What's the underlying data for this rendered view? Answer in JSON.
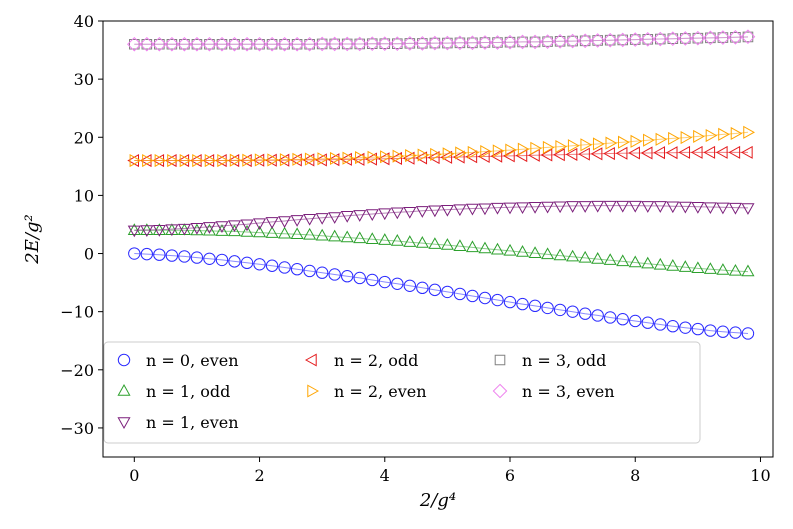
{
  "chart_data": {
    "type": "scatter",
    "xlabel": "2/g⁴",
    "ylabel": "2E/g²",
    "xlim": [
      -0.5,
      10.2
    ],
    "ylim": [
      -35,
      40
    ],
    "xticks": [
      0,
      2,
      4,
      6,
      8,
      10
    ],
    "yticks": [
      -30,
      -20,
      -10,
      0,
      10,
      20,
      30,
      40
    ],
    "grid": false,
    "legend_position": "lower-center",
    "series": [
      {
        "name": "n = 0, even",
        "marker": "circle",
        "color": "#2b2bff",
        "x": [
          0,
          0.2,
          0.4,
          0.6,
          0.8,
          1.0,
          1.2,
          1.4,
          1.6,
          1.8,
          2.0,
          2.2,
          2.4,
          2.6,
          2.8,
          3.0,
          3.2,
          3.4,
          3.6,
          3.8,
          4.0,
          4.2,
          4.4,
          4.6,
          4.8,
          5.0,
          5.2,
          5.4,
          5.6,
          5.8,
          6.0,
          6.2,
          6.4,
          6.6,
          6.8,
          7.0,
          7.2,
          7.4,
          7.6,
          7.8,
          8.0,
          8.2,
          8.4,
          8.6,
          8.8,
          9.0,
          9.2,
          9.4,
          9.6,
          9.8
        ],
        "y": [
          0.0,
          -0.1,
          -0.2,
          -0.35,
          -0.5,
          -0.7,
          -0.9,
          -1.1,
          -1.35,
          -1.6,
          -1.85,
          -2.1,
          -2.4,
          -2.7,
          -3.0,
          -3.3,
          -3.6,
          -3.9,
          -4.2,
          -4.55,
          -4.9,
          -5.2,
          -5.55,
          -5.9,
          -6.25,
          -6.6,
          -6.95,
          -7.3,
          -7.65,
          -8.0,
          -8.35,
          -8.7,
          -9.0,
          -9.35,
          -9.7,
          -10.0,
          -10.35,
          -10.65,
          -11.0,
          -11.3,
          -11.6,
          -11.9,
          -12.2,
          -12.5,
          -12.75,
          -13.0,
          -13.25,
          -13.45,
          -13.6,
          -13.75
        ]
      },
      {
        "name": "n = 1, odd",
        "marker": "triangle-up",
        "color": "#2ca02c",
        "x": [
          0,
          0.2,
          0.4,
          0.6,
          0.8,
          1.0,
          1.2,
          1.4,
          1.6,
          1.8,
          2.0,
          2.2,
          2.4,
          2.6,
          2.8,
          3.0,
          3.2,
          3.4,
          3.6,
          3.8,
          4.0,
          4.2,
          4.4,
          4.6,
          4.8,
          5.0,
          5.2,
          5.4,
          5.6,
          5.8,
          6.0,
          6.2,
          6.4,
          6.6,
          6.8,
          7.0,
          7.2,
          7.4,
          7.6,
          7.8,
          8.0,
          8.2,
          8.4,
          8.6,
          8.8,
          9.0,
          9.2,
          9.4,
          9.6,
          9.8
        ],
        "y": [
          4.0,
          4.0,
          4.0,
          4.0,
          4.0,
          3.95,
          3.9,
          3.85,
          3.8,
          3.7,
          3.6,
          3.5,
          3.4,
          3.3,
          3.2,
          3.05,
          2.9,
          2.75,
          2.6,
          2.45,
          2.3,
          2.15,
          1.95,
          1.8,
          1.6,
          1.45,
          1.25,
          1.05,
          0.85,
          0.65,
          0.45,
          0.25,
          0.05,
          -0.15,
          -0.35,
          -0.55,
          -0.75,
          -0.95,
          -1.15,
          -1.35,
          -1.55,
          -1.75,
          -1.95,
          -2.15,
          -2.35,
          -2.55,
          -2.7,
          -2.85,
          -3.0,
          -3.1
        ]
      },
      {
        "name": "n = 1, even",
        "marker": "triangle-down",
        "color": "#7b1f7b",
        "x": [
          0,
          0.2,
          0.4,
          0.6,
          0.8,
          1.0,
          1.2,
          1.4,
          1.6,
          1.8,
          2.0,
          2.2,
          2.4,
          2.6,
          2.8,
          3.0,
          3.2,
          3.4,
          3.6,
          3.8,
          4.0,
          4.2,
          4.4,
          4.6,
          4.8,
          5.0,
          5.2,
          5.4,
          5.6,
          5.8,
          6.0,
          6.2,
          6.4,
          6.6,
          6.8,
          7.0,
          7.2,
          7.4,
          7.6,
          7.8,
          8.0,
          8.2,
          8.4,
          8.6,
          8.8,
          9.0,
          9.2,
          9.4,
          9.6,
          9.8
        ],
        "y": [
          4.0,
          4.05,
          4.1,
          4.2,
          4.3,
          4.45,
          4.6,
          4.75,
          4.9,
          5.05,
          5.25,
          5.45,
          5.6,
          5.8,
          6.0,
          6.15,
          6.3,
          6.5,
          6.65,
          6.8,
          6.95,
          7.1,
          7.2,
          7.35,
          7.45,
          7.55,
          7.65,
          7.75,
          7.8,
          7.9,
          7.95,
          8.0,
          8.05,
          8.1,
          8.15,
          8.2,
          8.2,
          8.25,
          8.25,
          8.25,
          8.25,
          8.2,
          8.2,
          8.15,
          8.1,
          8.05,
          8.0,
          7.95,
          7.9,
          7.85
        ]
      },
      {
        "name": "n = 2, odd",
        "marker": "triangle-left",
        "color": "#e41a1c",
        "x": [
          0,
          0.2,
          0.4,
          0.6,
          0.8,
          1.0,
          1.2,
          1.4,
          1.6,
          1.8,
          2.0,
          2.2,
          2.4,
          2.6,
          2.8,
          3.0,
          3.2,
          3.4,
          3.6,
          3.8,
          4.0,
          4.2,
          4.4,
          4.6,
          4.8,
          5.0,
          5.2,
          5.4,
          5.6,
          5.8,
          6.0,
          6.2,
          6.4,
          6.6,
          6.8,
          7.0,
          7.2,
          7.4,
          7.6,
          7.8,
          8.0,
          8.2,
          8.4,
          8.6,
          8.8,
          9.0,
          9.2,
          9.4,
          9.6,
          9.8
        ],
        "y": [
          16.0,
          16.0,
          16.0,
          16.0,
          16.0,
          16.0,
          16.0,
          16.0,
          16.0,
          16.0,
          16.05,
          16.05,
          16.05,
          16.1,
          16.1,
          16.1,
          16.15,
          16.2,
          16.2,
          16.25,
          16.3,
          16.35,
          16.4,
          16.45,
          16.5,
          16.55,
          16.6,
          16.65,
          16.7,
          16.75,
          16.8,
          16.85,
          16.9,
          16.95,
          17.0,
          17.05,
          17.1,
          17.15,
          17.2,
          17.25,
          17.3,
          17.3,
          17.35,
          17.35,
          17.4,
          17.4,
          17.4,
          17.4,
          17.4,
          17.4
        ]
      },
      {
        "name": "n = 2, even",
        "marker": "triangle-right",
        "color": "#ffa500",
        "x": [
          0,
          0.2,
          0.4,
          0.6,
          0.8,
          1.0,
          1.2,
          1.4,
          1.6,
          1.8,
          2.0,
          2.2,
          2.4,
          2.6,
          2.8,
          3.0,
          3.2,
          3.4,
          3.6,
          3.8,
          4.0,
          4.2,
          4.4,
          4.6,
          4.8,
          5.0,
          5.2,
          5.4,
          5.6,
          5.8,
          6.0,
          6.2,
          6.4,
          6.6,
          6.8,
          7.0,
          7.2,
          7.4,
          7.6,
          7.8,
          8.0,
          8.2,
          8.4,
          8.6,
          8.8,
          9.0,
          9.2,
          9.4,
          9.6,
          9.8
        ],
        "y": [
          16.0,
          16.0,
          16.0,
          16.0,
          16.0,
          16.0,
          16.0,
          16.0,
          16.05,
          16.05,
          16.1,
          16.1,
          16.15,
          16.2,
          16.25,
          16.3,
          16.35,
          16.4,
          16.5,
          16.55,
          16.65,
          16.75,
          16.85,
          16.95,
          17.05,
          17.15,
          17.3,
          17.4,
          17.55,
          17.65,
          17.8,
          17.95,
          18.1,
          18.25,
          18.4,
          18.55,
          18.7,
          18.85,
          19.0,
          19.15,
          19.3,
          19.5,
          19.65,
          19.8,
          19.95,
          20.15,
          20.3,
          20.5,
          20.65,
          20.85
        ]
      },
      {
        "name": "n = 3, odd",
        "marker": "square",
        "color": "#808080",
        "x": [
          0,
          0.2,
          0.4,
          0.6,
          0.8,
          1.0,
          1.2,
          1.4,
          1.6,
          1.8,
          2.0,
          2.2,
          2.4,
          2.6,
          2.8,
          3.0,
          3.2,
          3.4,
          3.6,
          3.8,
          4.0,
          4.2,
          4.4,
          4.6,
          4.8,
          5.0,
          5.2,
          5.4,
          5.6,
          5.8,
          6.0,
          6.2,
          6.4,
          6.6,
          6.8,
          7.0,
          7.2,
          7.4,
          7.6,
          7.8,
          8.0,
          8.2,
          8.4,
          8.6,
          8.8,
          9.0,
          9.2,
          9.4,
          9.6,
          9.8
        ],
        "y": [
          36.0,
          36.0,
          36.0,
          36.0,
          36.0,
          36.0,
          36.0,
          36.0,
          36.0,
          36.0,
          36.0,
          36.0,
          36.0,
          36.0,
          36.0,
          36.05,
          36.05,
          36.05,
          36.05,
          36.1,
          36.1,
          36.1,
          36.15,
          36.15,
          36.2,
          36.2,
          36.25,
          36.25,
          36.3,
          36.3,
          36.35,
          36.4,
          36.4,
          36.45,
          36.5,
          36.55,
          36.6,
          36.65,
          36.7,
          36.75,
          36.8,
          36.85,
          36.9,
          36.95,
          37.0,
          37.05,
          37.1,
          37.15,
          37.2,
          37.25
        ]
      },
      {
        "name": "n = 3, even",
        "marker": "diamond",
        "color": "#ee82ee",
        "x": [
          0,
          0.2,
          0.4,
          0.6,
          0.8,
          1.0,
          1.2,
          1.4,
          1.6,
          1.8,
          2.0,
          2.2,
          2.4,
          2.6,
          2.8,
          3.0,
          3.2,
          3.4,
          3.6,
          3.8,
          4.0,
          4.2,
          4.4,
          4.6,
          4.8,
          5.0,
          5.2,
          5.4,
          5.6,
          5.8,
          6.0,
          6.2,
          6.4,
          6.6,
          6.8,
          7.0,
          7.2,
          7.4,
          7.6,
          7.8,
          8.0,
          8.2,
          8.4,
          8.6,
          8.8,
          9.0,
          9.2,
          9.4,
          9.6,
          9.8
        ],
        "y": [
          36.0,
          36.0,
          36.0,
          36.0,
          36.0,
          36.0,
          36.0,
          36.0,
          36.0,
          36.0,
          36.0,
          36.0,
          36.0,
          36.0,
          36.0,
          36.05,
          36.05,
          36.05,
          36.05,
          36.1,
          36.1,
          36.1,
          36.15,
          36.15,
          36.2,
          36.2,
          36.25,
          36.25,
          36.3,
          36.3,
          36.35,
          36.4,
          36.4,
          36.45,
          36.5,
          36.55,
          36.6,
          36.65,
          36.7,
          36.75,
          36.8,
          36.85,
          36.9,
          36.95,
          37.0,
          37.05,
          37.1,
          37.15,
          37.2,
          37.3
        ]
      }
    ]
  }
}
